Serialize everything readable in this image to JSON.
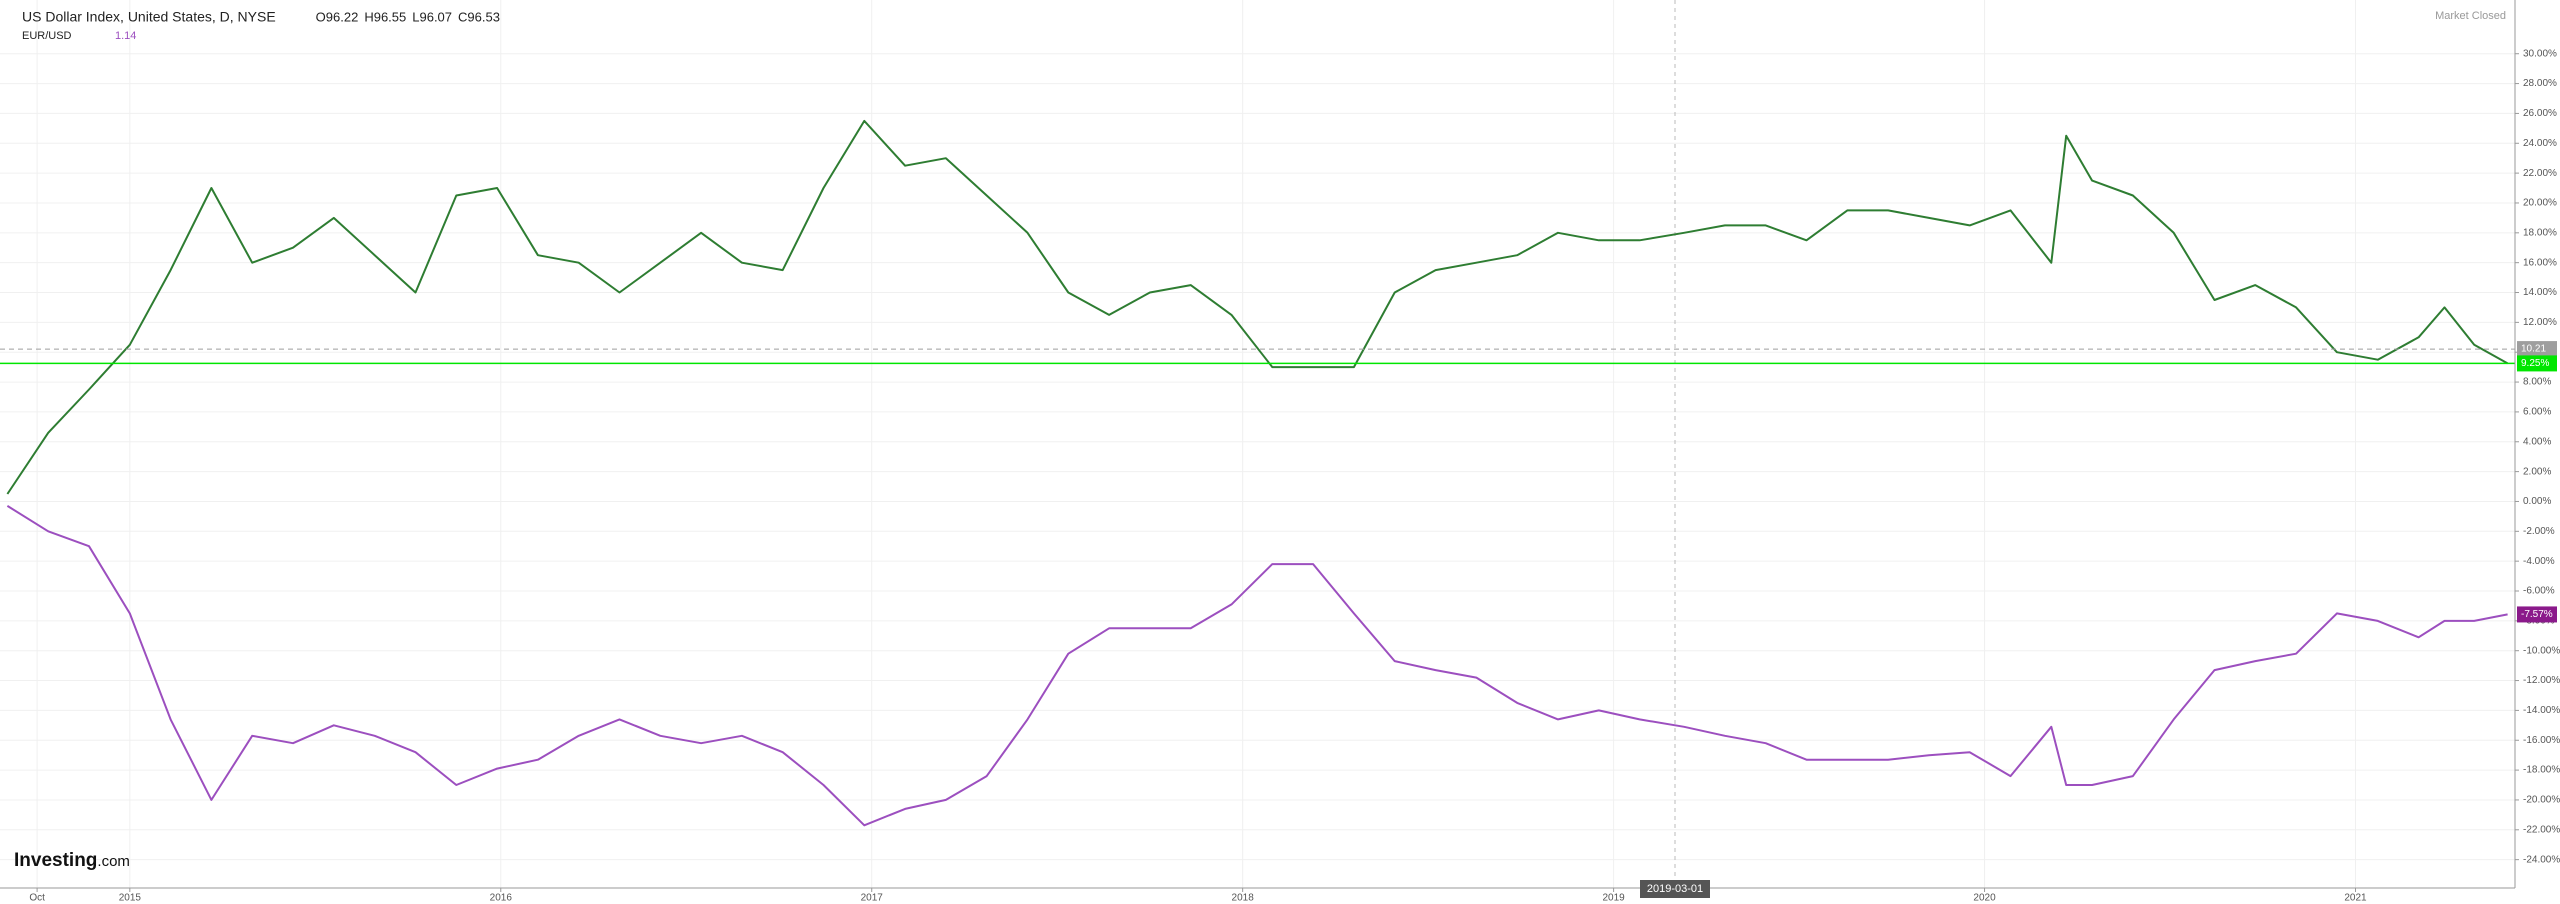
{
  "chart_data": {
    "type": "line",
    "header": {
      "title": "US Dollar Index, United States, D, NYSE",
      "quote": {
        "values": [
          96.22,
          96.55,
          96.07,
          96.53
        ],
        "value_labels": [
          "O96.22",
          "H96.55",
          "L96.07",
          "C96.53"
        ]
      },
      "second": "EUR/USD",
      "second_last": 1.14
    },
    "status": "Market Closed",
    "brand": [
      "Investing",
      ".com"
    ],
    "crosshair_label": "2019-03-01",
    "x": [
      2014.67,
      2014.78,
      2014.89,
      2015.0,
      2015.11,
      2015.22,
      2015.33,
      2015.44,
      2015.55,
      2015.66,
      2015.77,
      2015.88,
      2015.99,
      2016.1,
      2016.21,
      2016.32,
      2016.43,
      2016.54,
      2016.65,
      2016.76,
      2016.87,
      2016.98,
      2017.09,
      2017.2,
      2017.31,
      2017.42,
      2017.53,
      2017.64,
      2017.75,
      2017.86,
      2017.97,
      2018.08,
      2018.19,
      2018.3,
      2018.41,
      2018.52,
      2018.63,
      2018.74,
      2018.85,
      2018.96,
      2019.07,
      2019.19,
      2019.3,
      2019.41,
      2019.52,
      2019.63,
      2019.74,
      2019.85,
      2019.96,
      2020.07,
      2020.18,
      2020.22,
      2020.29,
      2020.4,
      2020.51,
      2020.62,
      2020.73,
      2020.84,
      2020.95,
      2021.06,
      2021.17,
      2021.24,
      2021.32,
      2021.41
    ],
    "series": [
      {
        "name": "US Dollar Index",
        "color": "#2e7d32",
        "values": [
          0.5,
          4.6,
          7.5,
          10.5,
          15.5,
          21,
          16,
          17,
          19,
          16.5,
          14,
          20.5,
          21,
          16.5,
          16,
          14,
          16,
          18,
          16,
          15.5,
          21,
          25.5,
          22.5,
          23,
          20.5,
          18,
          14,
          12.5,
          14,
          14.5,
          12.5,
          9,
          9,
          9,
          14,
          15.5,
          16,
          16.5,
          18,
          17.5,
          17.5,
          18,
          18.5,
          18.5,
          17.5,
          19.5,
          19.5,
          19,
          18.5,
          19.5,
          16,
          24.5,
          21.5,
          20.5,
          18,
          13.5,
          14.5,
          13,
          10,
          9.5,
          11,
          13,
          10.5,
          9.25
        ]
      },
      {
        "name": "EUR/USD",
        "color": "#9c4fbf",
        "values": [
          -0.3,
          -2,
          -3,
          -7.5,
          -14.6,
          -20,
          -15.7,
          -16.2,
          -15,
          -15.7,
          -16.8,
          -19,
          -17.9,
          -17.3,
          -15.7,
          -14.6,
          -15.7,
          -16.2,
          -15.7,
          -16.8,
          -19,
          -21.7,
          -20.6,
          -20,
          -18.4,
          -14.6,
          -10.2,
          -8.5,
          -8.5,
          -8.5,
          -6.9,
          -4.2,
          -4.2,
          -7.5,
          -10.7,
          -11.3,
          -11.8,
          -13.5,
          -14.6,
          -14,
          -14.6,
          -15.1,
          -15.7,
          -16.2,
          -17.3,
          -17.3,
          -17.3,
          -17,
          -16.8,
          -18.4,
          -15.1,
          -19,
          -19,
          -18.4,
          -14.6,
          -11.3,
          -10.7,
          -10.2,
          -7.5,
          -8,
          -9.1,
          -8,
          -8,
          -7.57
        ]
      }
    ],
    "xlim": [
      2014.65,
      2021.43
    ],
    "ylim": [
      -25.9,
      33.6
    ],
    "xticks": [
      {
        "value": 2014.75,
        "label": "Oct"
      },
      2015,
      2016,
      2017,
      2018,
      2019,
      2020,
      2021
    ],
    "yticks": [
      {
        "value": -24,
        "label": "-24.00%"
      },
      {
        "value": -22,
        "label": "-22.00%"
      },
      {
        "value": -20,
        "label": "-20.00%"
      },
      {
        "value": -18,
        "label": "-18.00%"
      },
      {
        "value": -16,
        "label": "-16.00%"
      },
      {
        "value": -14,
        "label": "-14.00%"
      },
      {
        "value": -12,
        "label": "-12.00%"
      },
      {
        "value": -10,
        "label": "-10.00%"
      },
      {
        "value": -8,
        "label": "-8.00%"
      },
      {
        "value": -6,
        "label": "-6.00%"
      },
      {
        "value": -4,
        "label": "-4.00%"
      },
      {
        "value": -2,
        "label": "-2.00%"
      },
      {
        "value": 0,
        "label": "0.00%"
      },
      {
        "value": 2,
        "label": "2.00%"
      },
      {
        "value": 4,
        "label": "4.00%"
      },
      {
        "value": 6,
        "label": "6.00%"
      },
      {
        "value": 8,
        "label": "8.00%"
      },
      {
        "value": 10,
        "label": "10.00%"
      },
      {
        "value": 12,
        "label": "12.00%"
      },
      {
        "value": 14,
        "label": "14.00%"
      },
      {
        "value": 16,
        "label": "16.00%"
      },
      {
        "value": 18,
        "label": "18.00%"
      },
      {
        "value": 20,
        "label": "20.00%"
      },
      {
        "value": 22,
        "label": "22.00%"
      },
      {
        "value": 24,
        "label": "24.00%"
      },
      {
        "value": 26,
        "label": "26.00%"
      },
      {
        "value": 28,
        "label": "28.00%"
      },
      {
        "value": 30,
        "label": "30.00%"
      }
    ],
    "grid": true,
    "markers": [
      {
        "value": 10.21,
        "color": "#9e9e9e",
        "dashed": true
      },
      {
        "value": 9.25,
        "label": "9.25%",
        "color": "#00e600",
        "dashed": false
      },
      {
        "value": -7.57,
        "label": "-7.57%",
        "color": "#8b1a8b"
      }
    ]
  }
}
